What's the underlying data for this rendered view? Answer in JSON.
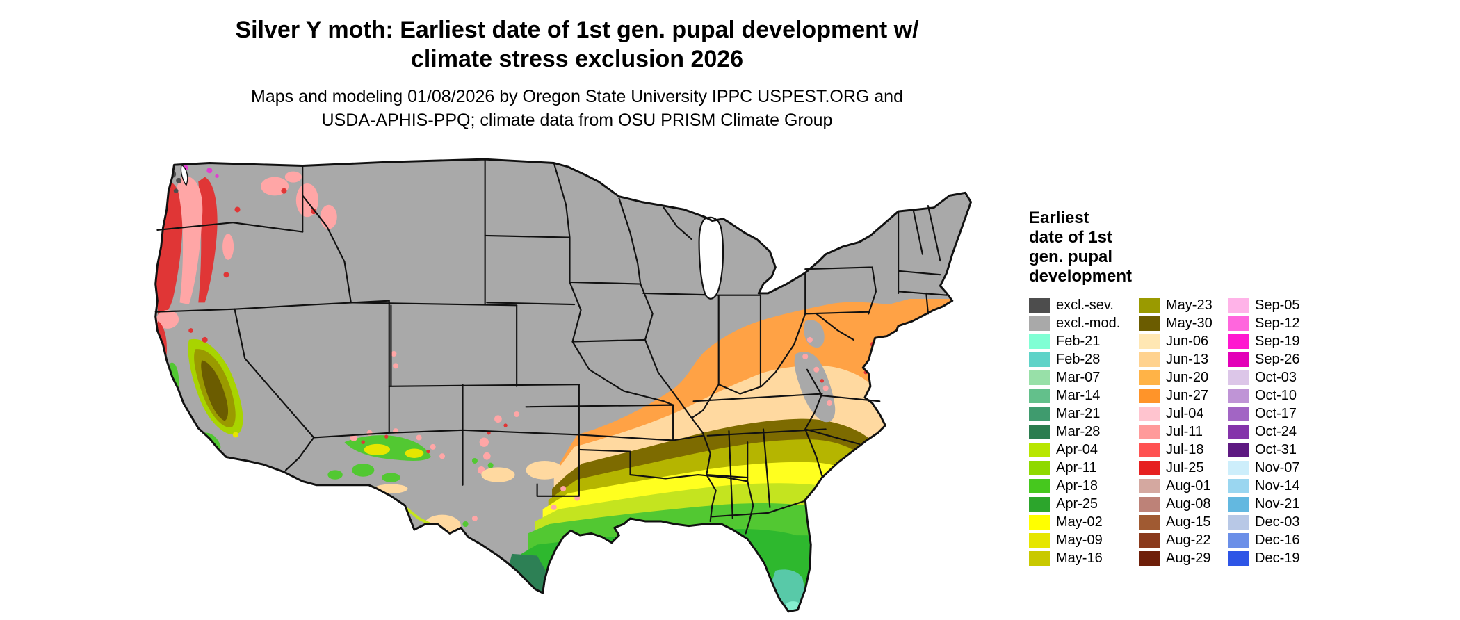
{
  "header": {
    "title_line1": "Silver Y moth: Earliest date of 1st gen. pupal development w/",
    "title_line2": "climate stress exclusion 2026",
    "subtitle_line1": "Maps and modeling 01/08/2026 by Oregon State University IPPC USPEST.ORG and",
    "subtitle_line2": "USDA-APHIS-PPQ; climate data from OSU PRISM Climate Group"
  },
  "legend": {
    "title_lines": [
      "Earliest",
      "date of 1st",
      "gen. pupal",
      "development"
    ],
    "columns": [
      {
        "entries": [
          {
            "label": "excl.-sev.",
            "color": "#4d4d4d"
          },
          {
            "label": "excl.-mod.",
            "color": "#a9a9a9"
          },
          {
            "label": "Feb-21",
            "color": "#80ffd4"
          },
          {
            "label": "Feb-28",
            "color": "#5fd3c8"
          },
          {
            "label": "Mar-07",
            "color": "#98e0a8"
          },
          {
            "label": "Mar-14",
            "color": "#63c08b"
          },
          {
            "label": "Mar-21",
            "color": "#3f9b6e"
          },
          {
            "label": "Mar-28",
            "color": "#2b7d4f"
          },
          {
            "label": "Apr-04",
            "color": "#b8e600"
          },
          {
            "label": "Apr-11",
            "color": "#8fd900"
          },
          {
            "label": "Apr-18",
            "color": "#46c81e"
          },
          {
            "label": "Apr-25",
            "color": "#2ca52c"
          },
          {
            "label": "May-02",
            "color": "#ffff00"
          },
          {
            "label": "May-09",
            "color": "#e6e600"
          },
          {
            "label": "May-16",
            "color": "#c9c900"
          }
        ]
      },
      {
        "entries": [
          {
            "label": "May-23",
            "color": "#9a9a00"
          },
          {
            "label": "May-30",
            "color": "#6b5c00"
          },
          {
            "label": "Jun-06",
            "color": "#ffe7b3"
          },
          {
            "label": "Jun-13",
            "color": "#ffd28f"
          },
          {
            "label": "Jun-20",
            "color": "#ffb347"
          },
          {
            "label": "Jun-27",
            "color": "#ff9429"
          },
          {
            "label": "Jul-04",
            "color": "#ffc4cf"
          },
          {
            "label": "Jul-11",
            "color": "#ff9a9a"
          },
          {
            "label": "Jul-18",
            "color": "#ff5252"
          },
          {
            "label": "Jul-25",
            "color": "#e62020"
          },
          {
            "label": "Aug-01",
            "color": "#d4a8a0"
          },
          {
            "label": "Aug-08",
            "color": "#bd8278"
          },
          {
            "label": "Aug-15",
            "color": "#a05a32"
          },
          {
            "label": "Aug-22",
            "color": "#8a3a1c"
          },
          {
            "label": "Aug-29",
            "color": "#6e1f0a"
          }
        ]
      },
      {
        "entries": [
          {
            "label": "Sep-05",
            "color": "#ffb3e8"
          },
          {
            "label": "Sep-12",
            "color": "#ff66dd"
          },
          {
            "label": "Sep-19",
            "color": "#ff17cf"
          },
          {
            "label": "Sep-26",
            "color": "#e300b8"
          },
          {
            "label": "Oct-03",
            "color": "#dcc6e8"
          },
          {
            "label": "Oct-10",
            "color": "#bf94d6"
          },
          {
            "label": "Oct-17",
            "color": "#a265c4"
          },
          {
            "label": "Oct-24",
            "color": "#8433aa"
          },
          {
            "label": "Oct-31",
            "color": "#5e1a82"
          },
          {
            "label": "Nov-07",
            "color": "#cdeefb"
          },
          {
            "label": "Nov-14",
            "color": "#9ad6f0"
          },
          {
            "label": "Nov-21",
            "color": "#63b8e0"
          },
          {
            "label": "Dec-03",
            "color": "#b8c8e6"
          },
          {
            "label": "Dec-16",
            "color": "#6b8fe8"
          },
          {
            "label": "Dec-19",
            "color": "#2e55e6"
          }
        ]
      }
    ]
  },
  "map": {
    "palette": {
      "base": "#a9a9a9",
      "orange": "#ffa245",
      "peach": "#ffd9a0",
      "dark_olive": "#7d6b00",
      "olive": "#b5b500",
      "yellow": "#ffff1f",
      "yellow_green": "#c4e41f",
      "green": "#52c832",
      "dark_green": "#2eb82e",
      "teal_green": "#2d8055",
      "teal": "#58c9a8",
      "aqua": "#85f0d0",
      "red": "#e03636",
      "pink": "#ffa6a6",
      "magenta": "#e040d0",
      "dark_spot": "#4d4d4d",
      "foothill": "#a8d400",
      "valley_olive": "#9a9a00",
      "valley_dark": "#6b5c00",
      "speck_yellow": "#e6e600",
      "border_line": "#111111"
    }
  }
}
